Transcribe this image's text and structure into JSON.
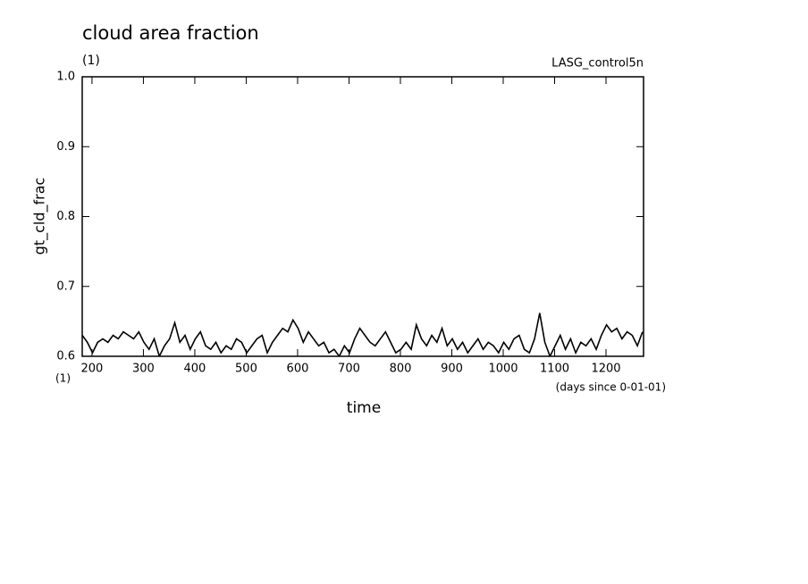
{
  "chart_data": {
    "type": "line",
    "title": "cloud area fraction",
    "units": "(1)",
    "run_name": "LASG_control5n",
    "y_label": "gt_cld_frac",
    "x_label": "time",
    "x_units_left": "(1)",
    "x_units": "(days since 0-01-01)",
    "x": [
      181,
      191,
      201,
      211,
      221,
      231,
      241,
      251,
      261,
      271,
      281,
      291,
      301,
      311,
      321,
      331,
      341,
      351,
      361,
      371,
      381,
      391,
      401,
      411,
      421,
      431,
      441,
      451,
      461,
      471,
      481,
      491,
      501,
      511,
      521,
      531,
      541,
      551,
      561,
      571,
      581,
      591,
      601,
      611,
      621,
      631,
      641,
      651,
      661,
      671,
      681,
      691,
      701,
      711,
      721,
      731,
      741,
      751,
      761,
      771,
      781,
      791,
      801,
      811,
      821,
      831,
      841,
      851,
      861,
      871,
      881,
      891,
      901,
      911,
      921,
      931,
      941,
      951,
      961,
      971,
      981,
      991,
      1001,
      1011,
      1021,
      1031,
      1041,
      1051,
      1061,
      1071,
      1081,
      1091,
      1101,
      1111,
      1121,
      1131,
      1141,
      1151,
      1161,
      1171,
      1181,
      1191,
      1201,
      1211,
      1221,
      1231,
      1241,
      1251,
      1261,
      1271
    ],
    "values": [
      0.63,
      0.62,
      0.605,
      0.62,
      0.625,
      0.62,
      0.63,
      0.625,
      0.635,
      0.63,
      0.625,
      0.635,
      0.62,
      0.61,
      0.625,
      0.6,
      0.615,
      0.625,
      0.648,
      0.62,
      0.63,
      0.61,
      0.625,
      0.635,
      0.615,
      0.61,
      0.62,
      0.605,
      0.615,
      0.61,
      0.625,
      0.62,
      0.605,
      0.615,
      0.625,
      0.63,
      0.605,
      0.62,
      0.63,
      0.64,
      0.635,
      0.652,
      0.64,
      0.62,
      0.635,
      0.625,
      0.615,
      0.62,
      0.605,
      0.61,
      0.6,
      0.615,
      0.605,
      0.625,
      0.64,
      0.63,
      0.62,
      0.615,
      0.625,
      0.635,
      0.62,
      0.605,
      0.61,
      0.62,
      0.61,
      0.645,
      0.625,
      0.615,
      0.63,
      0.62,
      0.64,
      0.615,
      0.625,
      0.61,
      0.62,
      0.605,
      0.615,
      0.625,
      0.61,
      0.62,
      0.615,
      0.605,
      0.62,
      0.61,
      0.625,
      0.63,
      0.61,
      0.605,
      0.625,
      0.662,
      0.62,
      0.6,
      0.615,
      0.63,
      0.61,
      0.625,
      0.605,
      0.62,
      0.615,
      0.625,
      0.61,
      0.63,
      0.645,
      0.635,
      0.64,
      0.625,
      0.635,
      0.63,
      0.615,
      0.635
    ],
    "color": "#000000",
    "xlim": [
      181,
      1273
    ],
    "xticks": [
      200,
      300,
      400,
      500,
      600,
      700,
      800,
      900,
      1000,
      1100,
      1200
    ],
    "ylim": [
      0.6,
      1.0
    ],
    "yticks": [
      0.6,
      0.7,
      0.8,
      0.9,
      {
        "value": 1,
        "label": "1.0"
      }
    ]
  }
}
